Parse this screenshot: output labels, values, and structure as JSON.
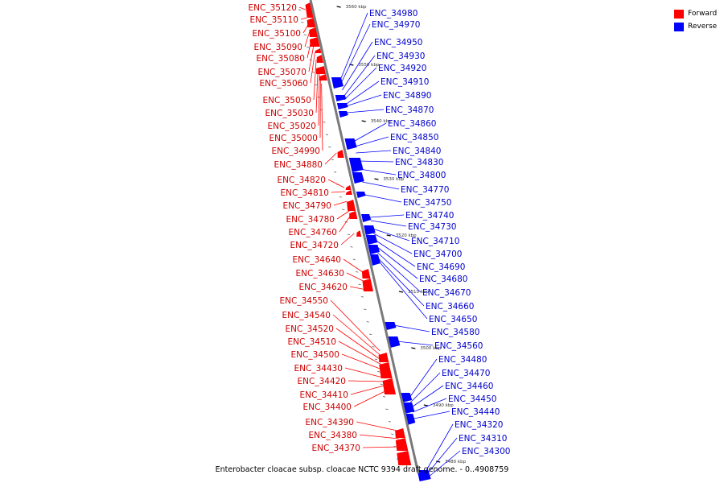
{
  "caption": "Enterobacter cloacae subsp. cloacae NCTC 9394 draft genome. - 0..4908759",
  "legend": {
    "forward_label": "Forward",
    "reverse_label": "Reverse",
    "forward_color": "#ff0000",
    "reverse_color": "#0000ff"
  },
  "ticks": [
    "3560 kbp",
    "3550 kbp",
    "3540 kbp",
    "3530 kbp",
    "3520 kbp",
    "3510 kbp",
    "3500 kbp",
    "3490 kbp",
    "3480 kbp"
  ],
  "forward_genes": [
    "ENC_35120",
    "ENC_35110",
    "ENC_35100",
    "ENC_35090",
    "ENC_35080",
    "ENC_35070",
    "ENC_35060",
    "ENC_35050",
    "ENC_35030",
    "ENC_35020",
    "ENC_35000",
    "ENC_34990",
    "ENC_34880",
    "ENC_34820",
    "ENC_34810",
    "ENC_34790",
    "ENC_34780",
    "ENC_34760",
    "ENC_34720",
    "ENC_34640",
    "ENC_34630",
    "ENC_34620",
    "ENC_34550",
    "ENC_34540",
    "ENC_34520",
    "ENC_34510",
    "ENC_34500",
    "ENC_34430",
    "ENC_34420",
    "ENC_34410",
    "ENC_34400",
    "ENC_34390",
    "ENC_34380",
    "ENC_34370"
  ],
  "reverse_genes": [
    "ENC_34980",
    "ENC_34970",
    "ENC_34950",
    "ENC_34930",
    "ENC_34920",
    "ENC_34910",
    "ENC_34890",
    "ENC_34870",
    "ENC_34860",
    "ENC_34850",
    "ENC_34840",
    "ENC_34830",
    "ENC_34800",
    "ENC_34770",
    "ENC_34750",
    "ENC_34740",
    "ENC_34730",
    "ENC_34710",
    "ENC_34700",
    "ENC_34690",
    "ENC_34680",
    "ENC_34670",
    "ENC_34660",
    "ENC_34650",
    "ENC_34580",
    "ENC_34560",
    "ENC_34480",
    "ENC_34470",
    "ENC_34460",
    "ENC_34450",
    "ENC_34440",
    "ENC_34320",
    "ENC_34310",
    "ENC_34300"
  ]
}
